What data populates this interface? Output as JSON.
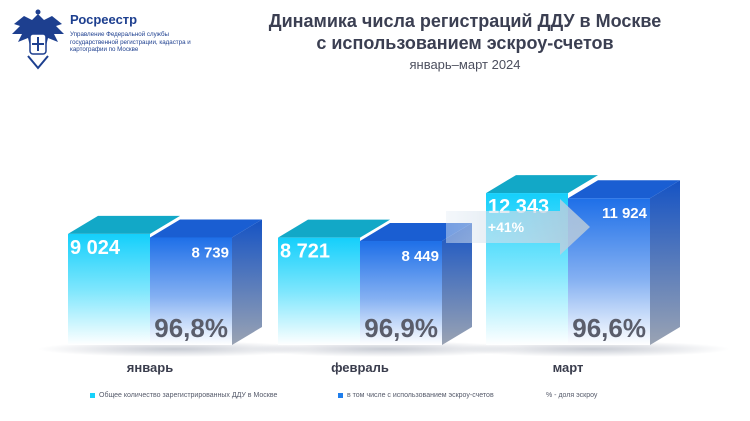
{
  "logo": {
    "name": "Росреестр",
    "description": "Управление Федеральной службы государственной регистрации, кадастра и картографии по Москве"
  },
  "chart_data": {
    "type": "bar",
    "title_line1": "Динамика числа регистраций ДДУ в Москве",
    "title_line2": "с использованием эскроу-счетов",
    "subtitle": "январь–март 2024",
    "categories": [
      "январь",
      "февраль",
      "март"
    ],
    "series": [
      {
        "name": "Общее количество зарегистрированных ДДУ в Москве",
        "values": [
          9024,
          8721,
          12343
        ],
        "labels": [
          "9 024",
          "8 721",
          "12 343"
        ],
        "color": "#17d2fb"
      },
      {
        "name": "в том числе с использованием эскроу-счетов",
        "values": [
          8739,
          8449,
          11924
        ],
        "labels": [
          "8 739",
          "8 449",
          "11 924"
        ],
        "color": "#1f7eec"
      }
    ],
    "escrow_share": [
      "96,8%",
      "96,9%",
      "96,6%"
    ],
    "share_legend": "% - доля эскроу",
    "growth_annotation": "+41%",
    "ylim": [
      0,
      13000
    ],
    "grid": false,
    "legend_position": "bottom"
  },
  "colors": {
    "title": "#3b3f52",
    "brand": "#1d3f8f",
    "total_bar": "#17d2fb",
    "escrow_bar": "#1f7eec",
    "share_text": "#5a5d6b"
  }
}
